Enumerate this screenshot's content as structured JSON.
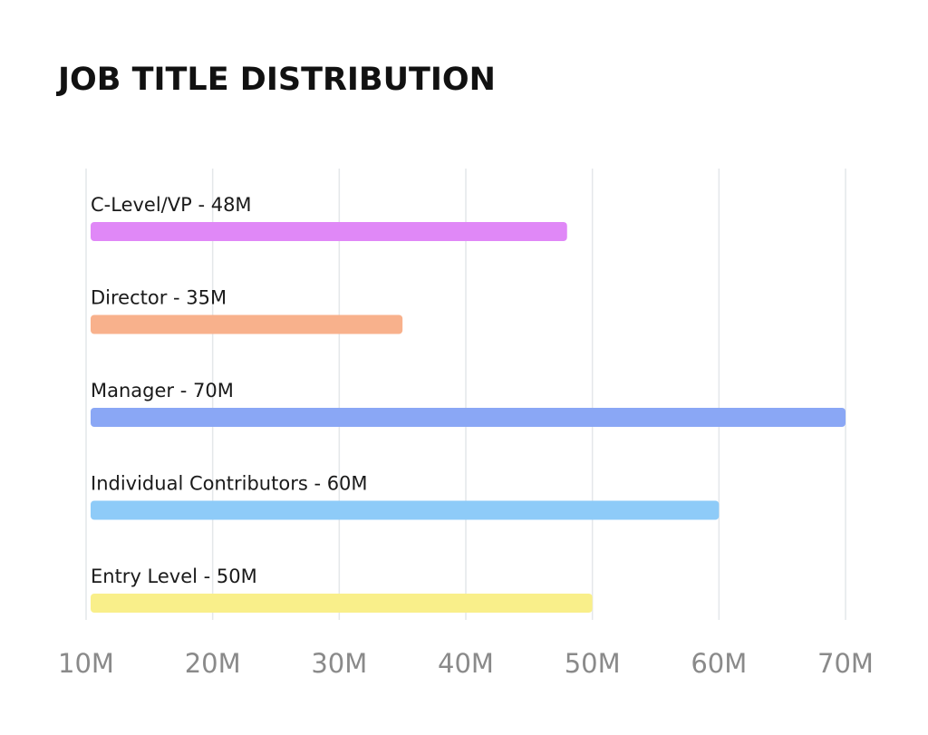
{
  "chart_data": {
    "type": "bar",
    "orientation": "horizontal",
    "title": "JOB TITLE DISTRIBUTION",
    "xlabel": "",
    "ylabel": "",
    "xlim": [
      10,
      70
    ],
    "x_ticks": [
      10,
      20,
      30,
      40,
      50,
      60,
      70
    ],
    "x_tick_labels": [
      "10M",
      "20M",
      "30M",
      "40M",
      "50M",
      "60M",
      "70M"
    ],
    "grid": true,
    "categories": [
      "C-Level/VP",
      "Director",
      "Manager",
      "Individual Contributors",
      "Entry Level"
    ],
    "values": [
      48,
      35,
      70,
      60,
      50
    ],
    "labels": [
      "C-Level/VP - 48M",
      "Director - 35M",
      "Manager - 70M",
      "Individual Contributors - 60M",
      "Entry Level - 50M"
    ],
    "colors": [
      "#e088f7",
      "#f8b18c",
      "#8aa7f5",
      "#8ecbf8",
      "#f9ef8a"
    ]
  }
}
